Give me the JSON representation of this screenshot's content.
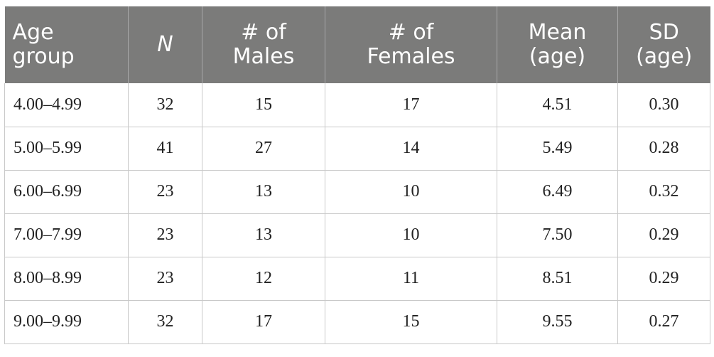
{
  "table": {
    "headers": [
      {
        "line1": "Age",
        "line2": "group"
      },
      {
        "line1": "N",
        "line2": ""
      },
      {
        "line1": "# of",
        "line2": "Males"
      },
      {
        "line1": "# of",
        "line2": "Females"
      },
      {
        "line1": "Mean",
        "line2": "(age)"
      },
      {
        "line1": "SD",
        "line2": "(age)"
      }
    ],
    "rows": [
      [
        "4.00–4.99",
        "32",
        "15",
        "17",
        "4.51",
        "0.30"
      ],
      [
        "5.00–5.99",
        "41",
        "27",
        "14",
        "5.49",
        "0.28"
      ],
      [
        "6.00–6.99",
        "23",
        "13",
        "10",
        "6.49",
        "0.32"
      ],
      [
        "7.00–7.99",
        "23",
        "13",
        "10",
        "7.50",
        "0.29"
      ],
      [
        "8.00–8.99",
        "23",
        "12",
        "11",
        "8.51",
        "0.29"
      ],
      [
        "9.00–9.99",
        "32",
        "17",
        "15",
        "9.55",
        "0.27"
      ]
    ]
  }
}
